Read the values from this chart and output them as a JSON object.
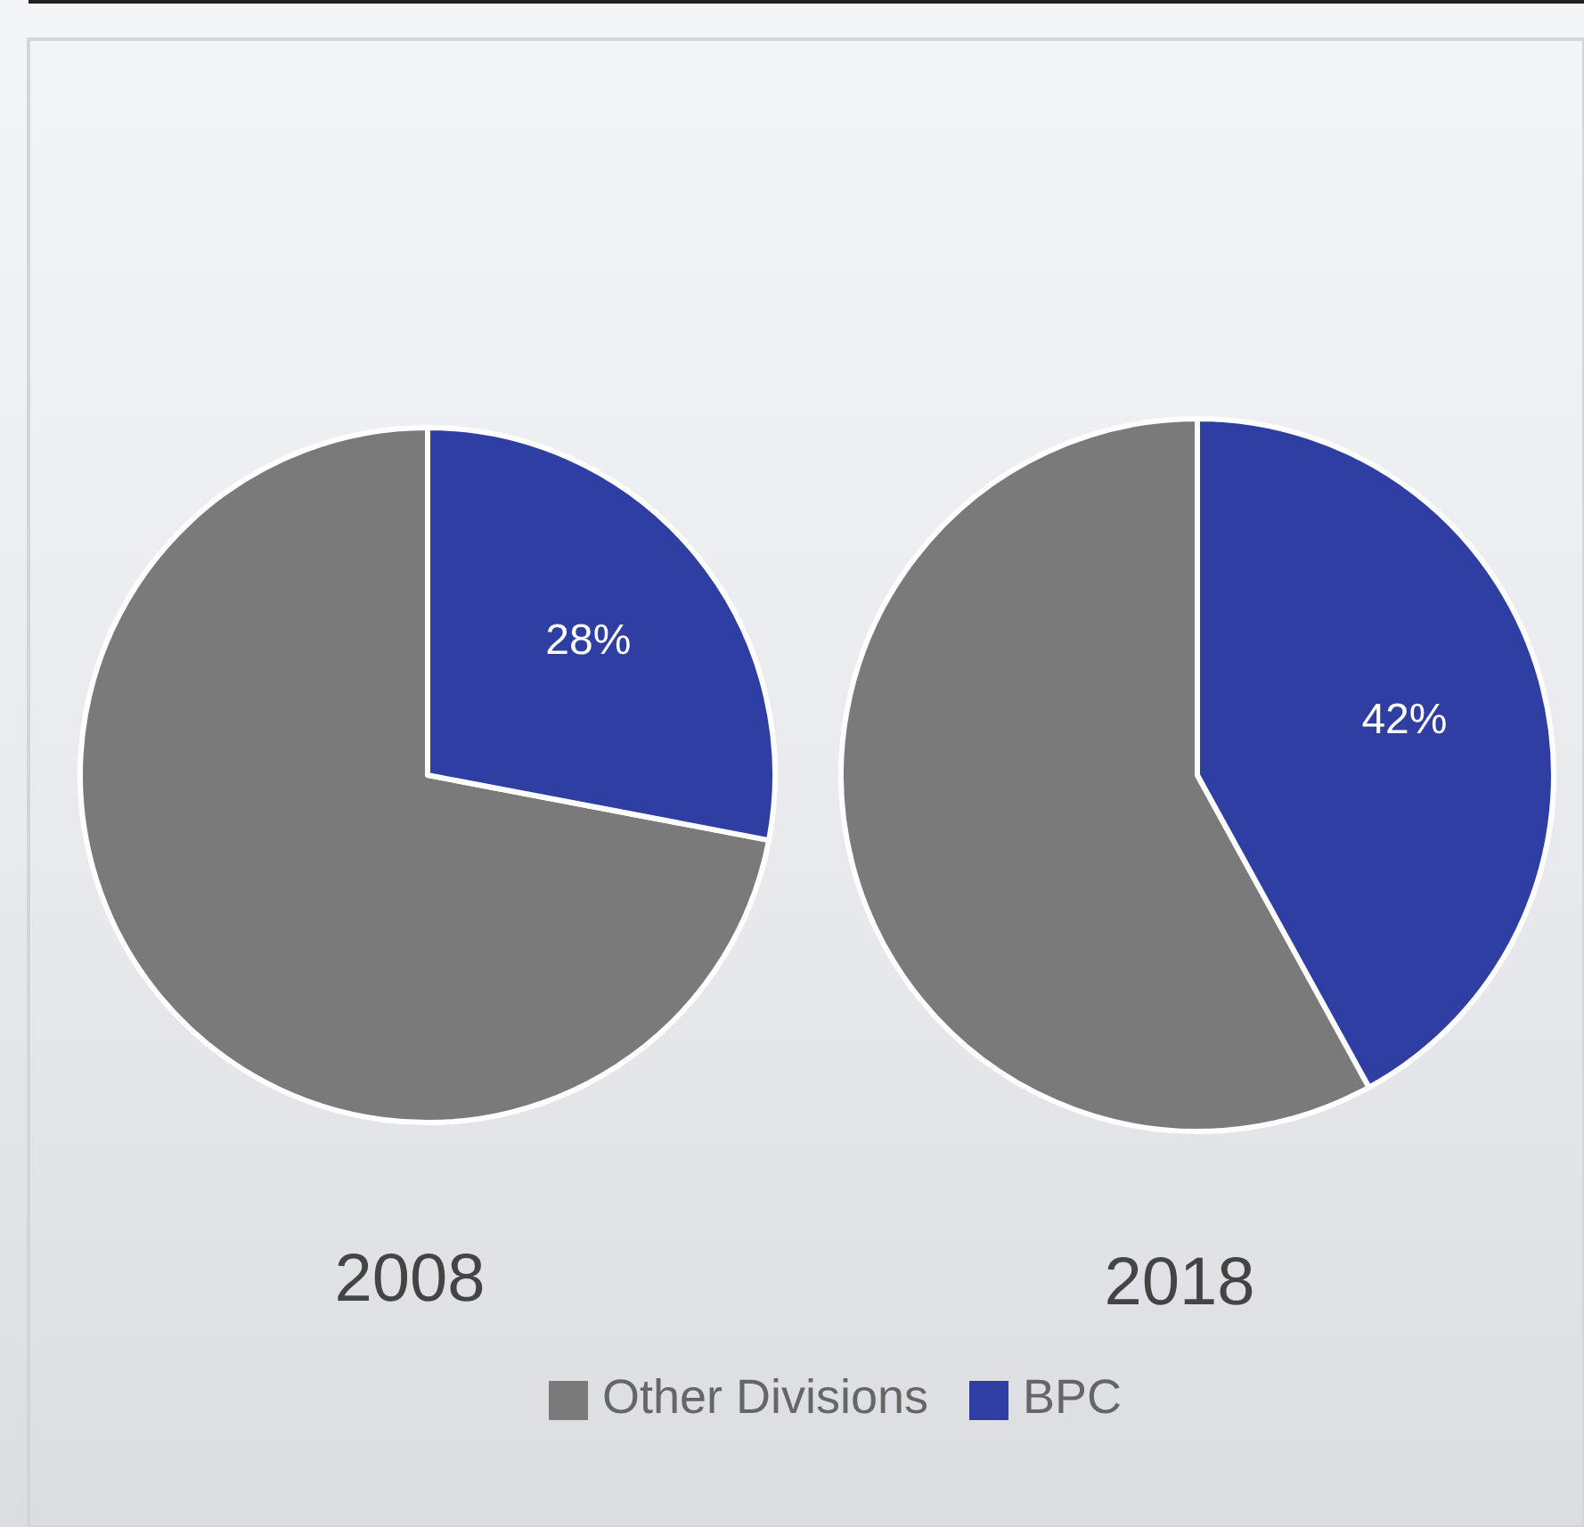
{
  "chart_data": {
    "type": "pie",
    "categories": [
      "Other Divisions",
      "BPC"
    ],
    "colors": [
      "#7a7a7a",
      "#2f3ea3"
    ],
    "legend": "bottom",
    "series": [
      {
        "name": "2008",
        "values": [
          72,
          28
        ],
        "value_labels": [
          null,
          "28%"
        ]
      },
      {
        "name": "2018",
        "values": [
          58,
          42
        ],
        "value_labels": [
          null,
          "42%"
        ]
      }
    ]
  }
}
